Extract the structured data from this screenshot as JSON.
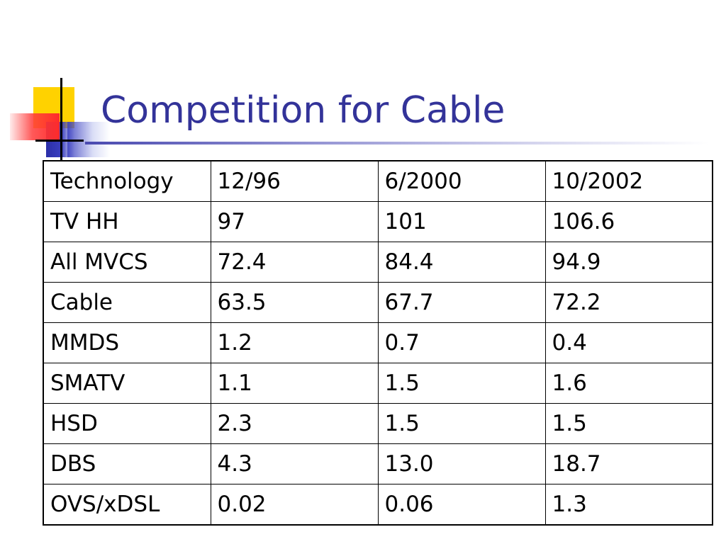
{
  "slide": {
    "title": "Competition for Cable"
  },
  "table": {
    "header": [
      "Technology",
      "12/96",
      "6/2000",
      "10/2002"
    ],
    "rows": [
      [
        "TV HH",
        "97",
        "101",
        "106.6"
      ],
      [
        "All MVCS",
        "72.4",
        "84.4",
        "94.9"
      ],
      [
        "Cable",
        "63.5",
        "67.7",
        "72.2"
      ],
      [
        "MMDS",
        "1.2",
        "0.7",
        "0.4"
      ],
      [
        "SMATV",
        "1.1",
        "1.5",
        "1.6"
      ],
      [
        "HSD",
        "2.3",
        "1.5",
        "1.5"
      ],
      [
        "DBS",
        "4.3",
        "13.0",
        "18.7"
      ],
      [
        "OVS/xDSL",
        "0.02",
        "0.06",
        "1.3"
      ]
    ]
  },
  "colors": {
    "title": "#333399",
    "logo_yellow": "#ffd200",
    "logo_blue": "#3a3fc0",
    "logo_red": "#ff2b2b"
  }
}
